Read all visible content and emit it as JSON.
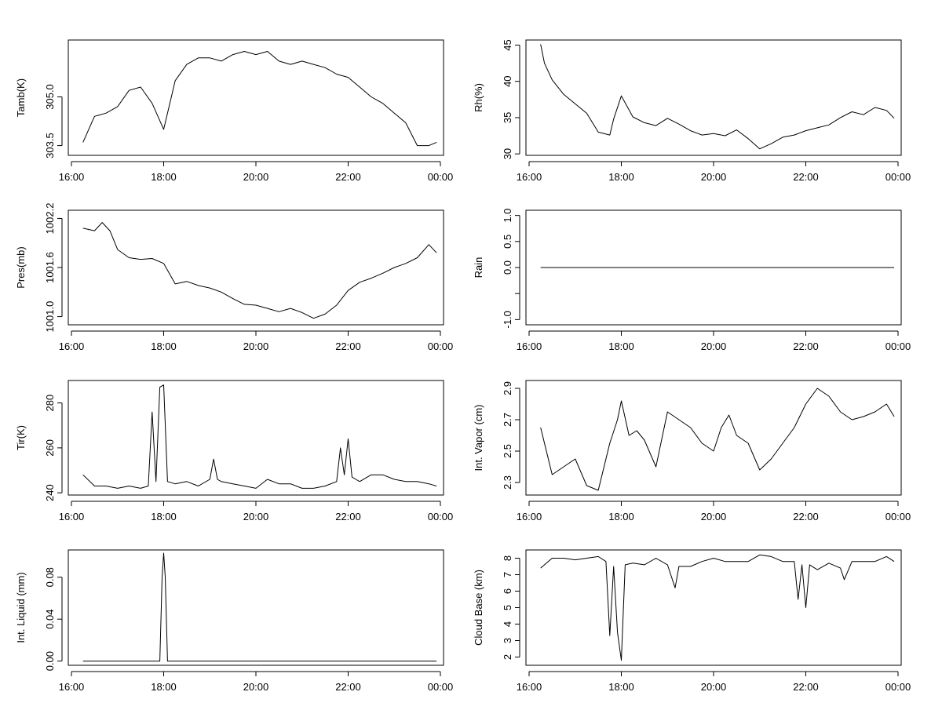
{
  "chart_data": [
    {
      "type": "line",
      "ylabel": "Tamb(K)",
      "xlim": [
        "16:00",
        "00:00"
      ],
      "x_tick_labels": [
        "16:00",
        "18:00",
        "20:00",
        "22:00",
        "00:00"
      ],
      "ylim": [
        303.2,
        306.75
      ],
      "y_ticks": [
        303.5,
        305.0
      ],
      "y_tick_labels": [
        "303.5",
        "305.0"
      ],
      "series": [
        {
          "x": [
            "16:15",
            "16:30",
            "16:45",
            "17:00",
            "17:15",
            "17:30",
            "17:45",
            "18:00",
            "18:15",
            "18:30",
            "18:45",
            "19:00",
            "19:15",
            "19:30",
            "19:45",
            "20:00",
            "20:15",
            "20:30",
            "20:45",
            "21:00",
            "21:15",
            "21:30",
            "21:45",
            "22:00",
            "22:15",
            "22:30",
            "22:45",
            "23:00",
            "23:15",
            "23:30",
            "23:45",
            "23:55"
          ],
          "y": [
            303.6,
            304.4,
            304.5,
            304.7,
            305.2,
            305.3,
            304.8,
            304.0,
            305.5,
            306.0,
            306.2,
            306.2,
            306.1,
            306.3,
            306.4,
            306.3,
            306.4,
            306.1,
            306.0,
            306.1,
            306.0,
            305.9,
            305.7,
            305.6,
            305.3,
            305.0,
            304.8,
            304.5,
            304.2,
            303.5,
            303.5,
            303.6
          ]
        }
      ]
    },
    {
      "type": "line",
      "ylabel": "Rh(%)",
      "xlim": [
        "16:00",
        "00:00"
      ],
      "x_tick_labels": [
        "16:00",
        "18:00",
        "20:00",
        "22:00",
        "00:00"
      ],
      "ylim": [
        29.8,
        45.7
      ],
      "y_ticks": [
        30,
        35,
        40,
        45
      ],
      "y_tick_labels": [
        "30",
        "35",
        "40",
        "45"
      ],
      "series": [
        {
          "x": [
            "16:15",
            "16:20",
            "16:30",
            "16:45",
            "17:00",
            "17:15",
            "17:30",
            "17:45",
            "17:50",
            "18:00",
            "18:15",
            "18:30",
            "18:45",
            "19:00",
            "19:15",
            "19:30",
            "19:45",
            "20:00",
            "20:15",
            "20:30",
            "20:45",
            "21:00",
            "21:15",
            "21:30",
            "21:45",
            "22:00",
            "22:15",
            "22:30",
            "22:45",
            "23:00",
            "23:15",
            "23:30",
            "23:45",
            "23:55"
          ],
          "y": [
            45.1,
            42.5,
            40.2,
            38.2,
            36.9,
            35.6,
            33.0,
            32.6,
            34.8,
            38.0,
            35.1,
            34.3,
            33.9,
            34.9,
            34.1,
            33.2,
            32.6,
            32.8,
            32.5,
            33.3,
            32.1,
            30.7,
            31.4,
            32.3,
            32.6,
            33.2,
            33.6,
            34.0,
            35.0,
            35.8,
            35.4,
            36.4,
            36.0,
            34.9
          ]
        }
      ]
    },
    {
      "type": "line",
      "ylabel": "Pres(mb)",
      "xlim": [
        "16:00",
        "00:00"
      ],
      "x_tick_labels": [
        "16:00",
        "18:00",
        "20:00",
        "22:00",
        "00:00"
      ],
      "ylim": [
        1000.9,
        1002.3
      ],
      "y_ticks": [
        1001.0,
        1001.6,
        1002.2
      ],
      "y_tick_labels": [
        "1001.0",
        "1001.6",
        "1002.2"
      ],
      "series": [
        {
          "x": [
            "16:15",
            "16:30",
            "16:40",
            "16:50",
            "17:00",
            "17:15",
            "17:30",
            "17:45",
            "18:00",
            "18:15",
            "18:30",
            "18:45",
            "19:00",
            "19:15",
            "19:30",
            "19:45",
            "20:00",
            "20:15",
            "20:30",
            "20:45",
            "21:00",
            "21:15",
            "21:30",
            "21:45",
            "22:00",
            "22:15",
            "22:30",
            "22:45",
            "23:00",
            "23:15",
            "23:30",
            "23:45",
            "23:55"
          ],
          "y": [
            1002.08,
            1002.05,
            1002.15,
            1002.05,
            1001.82,
            1001.72,
            1001.7,
            1001.71,
            1001.65,
            1001.4,
            1001.43,
            1001.38,
            1001.35,
            1001.3,
            1001.22,
            1001.15,
            1001.14,
            1001.1,
            1001.06,
            1001.1,
            1001.05,
            1000.98,
            1001.03,
            1001.14,
            1001.32,
            1001.42,
            1001.47,
            1001.53,
            1001.6,
            1001.65,
            1001.72,
            1001.88,
            1001.78
          ]
        }
      ]
    },
    {
      "type": "line",
      "ylabel": "Rain",
      "xlim": [
        "16:00",
        "00:00"
      ],
      "x_tick_labels": [
        "16:00",
        "18:00",
        "20:00",
        "22:00",
        "00:00"
      ],
      "ylim": [
        -1.1,
        1.1
      ],
      "y_ticks": [
        -1.0,
        -0.5,
        0.0,
        0.5,
        1.0
      ],
      "y_tick_labels": [
        "-1.0",
        "",
        "0.0",
        "0.5",
        "1.0"
      ],
      "series": [
        {
          "x": [
            "16:15",
            "23:55"
          ],
          "y": [
            0.0,
            0.0
          ]
        }
      ]
    },
    {
      "type": "line",
      "ylabel": "Tir(K)",
      "xlim": [
        "16:00",
        "00:00"
      ],
      "x_tick_labels": [
        "16:00",
        "18:00",
        "20:00",
        "22:00",
        "00:00"
      ],
      "ylim": [
        239,
        290
      ],
      "y_ticks": [
        240,
        260,
        280
      ],
      "y_tick_labels": [
        "240",
        "260",
        "280"
      ],
      "series": [
        {
          "x": [
            "16:15",
            "16:30",
            "16:45",
            "17:00",
            "17:15",
            "17:30",
            "17:40",
            "17:45",
            "17:50",
            "17:55",
            "18:00",
            "18:05",
            "18:15",
            "18:30",
            "18:45",
            "19:00",
            "19:05",
            "19:10",
            "19:15",
            "19:30",
            "19:45",
            "20:00",
            "20:15",
            "20:30",
            "20:45",
            "21:00",
            "21:15",
            "21:30",
            "21:45",
            "21:50",
            "21:55",
            "22:00",
            "22:05",
            "22:10",
            "22:15",
            "22:30",
            "22:45",
            "23:00",
            "23:15",
            "23:30",
            "23:45",
            "23:55"
          ],
          "y": [
            248,
            243,
            243,
            242,
            243,
            242,
            243,
            276,
            245,
            287,
            288,
            245,
            244,
            245,
            243,
            246,
            255,
            246,
            245,
            244,
            243,
            242,
            246,
            244,
            244,
            242,
            242,
            243,
            245,
            260,
            248,
            264,
            247,
            246,
            245,
            248,
            248,
            246,
            245,
            245,
            244,
            243
          ]
        }
      ]
    },
    {
      "type": "line",
      "ylabel": "Int. Vapor (cm)",
      "xlim": [
        "16:00",
        "00:00"
      ],
      "x_tick_labels": [
        "16:00",
        "18:00",
        "20:00",
        "22:00",
        "00:00"
      ],
      "ylim": [
        2.22,
        2.95
      ],
      "y_ticks": [
        2.3,
        2.5,
        2.7,
        2.9
      ],
      "y_tick_labels": [
        "2.3",
        "2.5",
        "2.7",
        "2.9"
      ],
      "series": [
        {
          "x": [
            "16:15",
            "16:30",
            "16:45",
            "17:00",
            "17:15",
            "17:30",
            "17:45",
            "17:55",
            "18:00",
            "18:10",
            "18:20",
            "18:30",
            "18:45",
            "19:00",
            "19:15",
            "19:30",
            "19:45",
            "20:00",
            "20:10",
            "20:20",
            "20:30",
            "20:45",
            "21:00",
            "21:15",
            "21:30",
            "21:45",
            "22:00",
            "22:15",
            "22:30",
            "22:45",
            "23:00",
            "23:15",
            "23:30",
            "23:45",
            "23:55"
          ],
          "y": [
            2.65,
            2.35,
            2.4,
            2.45,
            2.28,
            2.25,
            2.55,
            2.7,
            2.82,
            2.6,
            2.63,
            2.57,
            2.4,
            2.75,
            2.7,
            2.65,
            2.55,
            2.5,
            2.65,
            2.73,
            2.6,
            2.55,
            2.38,
            2.45,
            2.55,
            2.65,
            2.8,
            2.9,
            2.85,
            2.75,
            2.7,
            2.72,
            2.75,
            2.8,
            2.72
          ]
        }
      ]
    },
    {
      "type": "line",
      "ylabel": "Int. Liquid (mm)",
      "xlim": [
        "16:00",
        "00:00"
      ],
      "x_tick_labels": [
        "16:00",
        "18:00",
        "20:00",
        "22:00",
        "00:00"
      ],
      "ylim": [
        -0.004,
        0.106
      ],
      "y_ticks": [
        0.0,
        0.04,
        0.08
      ],
      "y_tick_labels": [
        "0.00",
        "0.04",
        "0.08"
      ],
      "series": [
        {
          "x": [
            "16:15",
            "17:55",
            "17:58",
            "18:00",
            "18:02",
            "18:05",
            "23:55"
          ],
          "y": [
            0.0,
            0.0,
            0.08,
            0.103,
            0.08,
            0.0,
            0.0
          ]
        }
      ]
    },
    {
      "type": "line",
      "ylabel": "Cloud Base (km)",
      "xlim": [
        "16:00",
        "00:00"
      ],
      "x_tick_labels": [
        "16:00",
        "18:00",
        "20:00",
        "22:00",
        "00:00"
      ],
      "ylim": [
        1.5,
        8.5
      ],
      "y_ticks": [
        2,
        3,
        4,
        5,
        6,
        7,
        8
      ],
      "y_tick_labels": [
        "2",
        "3",
        "4",
        "5",
        "6",
        "7",
        "8"
      ],
      "series": [
        {
          "x": [
            "16:15",
            "16:30",
            "16:45",
            "17:00",
            "17:15",
            "17:30",
            "17:40",
            "17:45",
            "17:50",
            "17:55",
            "18:00",
            "18:05",
            "18:15",
            "18:30",
            "18:45",
            "19:00",
            "19:10",
            "19:15",
            "19:30",
            "19:45",
            "20:00",
            "20:15",
            "20:30",
            "20:45",
            "21:00",
            "21:15",
            "21:30",
            "21:45",
            "21:50",
            "21:55",
            "22:00",
            "22:05",
            "22:15",
            "22:30",
            "22:45",
            "22:50",
            "23:00",
            "23:15",
            "23:30",
            "23:45",
            "23:55"
          ],
          "y": [
            7.4,
            8.0,
            8.0,
            7.9,
            8.0,
            8.1,
            7.8,
            3.3,
            7.5,
            3.5,
            1.8,
            7.6,
            7.7,
            7.6,
            8.0,
            7.6,
            6.2,
            7.5,
            7.5,
            7.8,
            8.0,
            7.8,
            7.8,
            7.8,
            8.2,
            8.1,
            7.8,
            7.8,
            5.5,
            7.6,
            5.0,
            7.6,
            7.3,
            7.7,
            7.4,
            6.7,
            7.8,
            7.8,
            7.8,
            8.1,
            7.8
          ]
        }
      ]
    }
  ]
}
